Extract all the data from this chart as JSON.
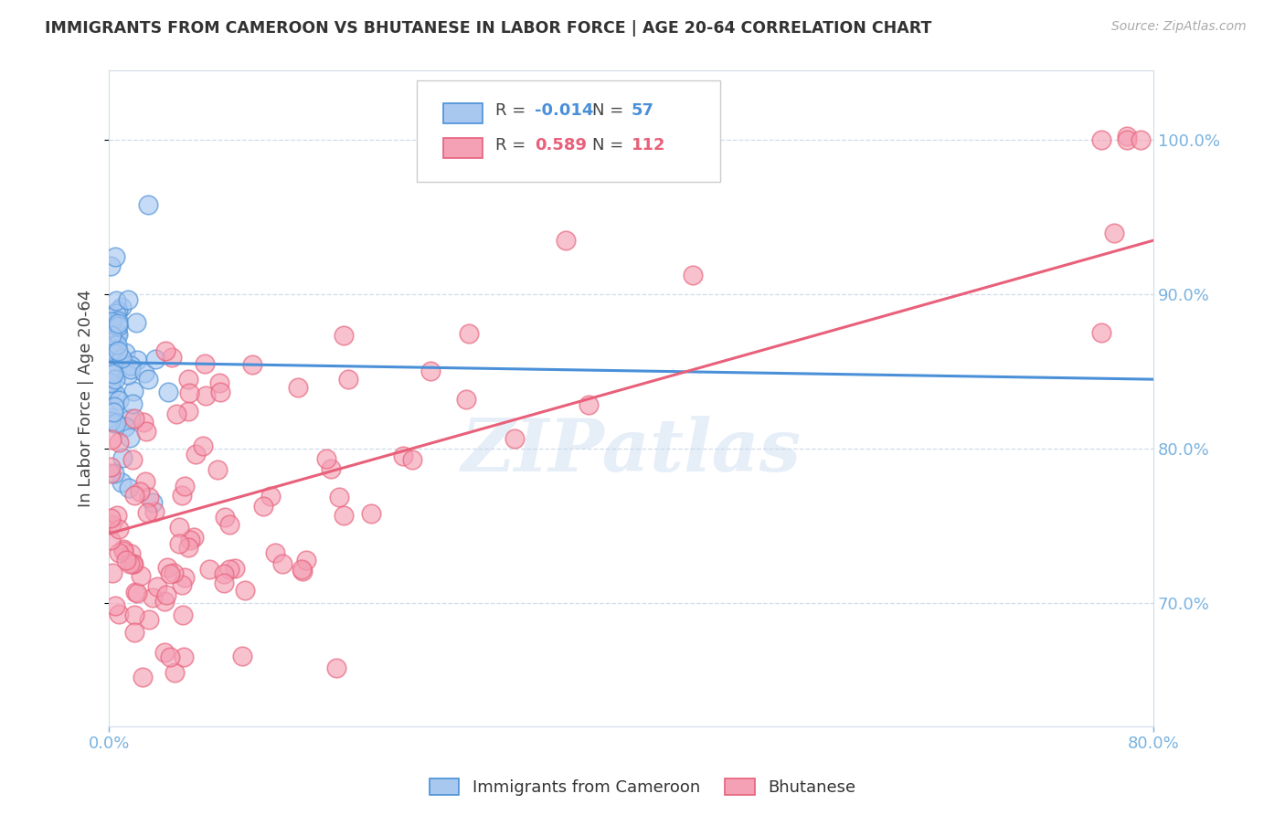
{
  "title": "IMMIGRANTS FROM CAMEROON VS BHUTANESE IN LABOR FORCE | AGE 20-64 CORRELATION CHART",
  "source": "Source: ZipAtlas.com",
  "ylabel": "In Labor Force | Age 20-64",
  "x_min": 0.0,
  "x_max": 0.8,
  "y_min": 0.62,
  "y_max": 1.045,
  "y_ticks": [
    0.7,
    0.8,
    0.9,
    1.0
  ],
  "x_ticks": [
    0.0,
    0.8
  ],
  "legend_label_cameroon": "Immigrants from Cameroon",
  "legend_label_bhutanese": "Bhutanese",
  "color_cameroon": "#a8c8f0",
  "color_bhutanese": "#f4a0b5",
  "trendline_cameroon_color": "#4a90d9",
  "trendline_bhutanese_color": "#e8607a",
  "axis_color": "#7ab3e0",
  "grid_color": "#d0dcea",
  "watermark": "ZIPatlas",
  "R_cameroon": -0.014,
  "N_cameroon": 57,
  "R_bhutanese": 0.589,
  "N_bhutanese": 112,
  "cam_trend_x0": 0.0,
  "cam_trend_x1": 0.8,
  "cam_trend_y0": 0.856,
  "cam_trend_y1": 0.845,
  "bhu_trend_x0": 0.0,
  "bhu_trend_x1": 0.8,
  "bhu_trend_y0": 0.745,
  "bhu_trend_y1": 0.935
}
